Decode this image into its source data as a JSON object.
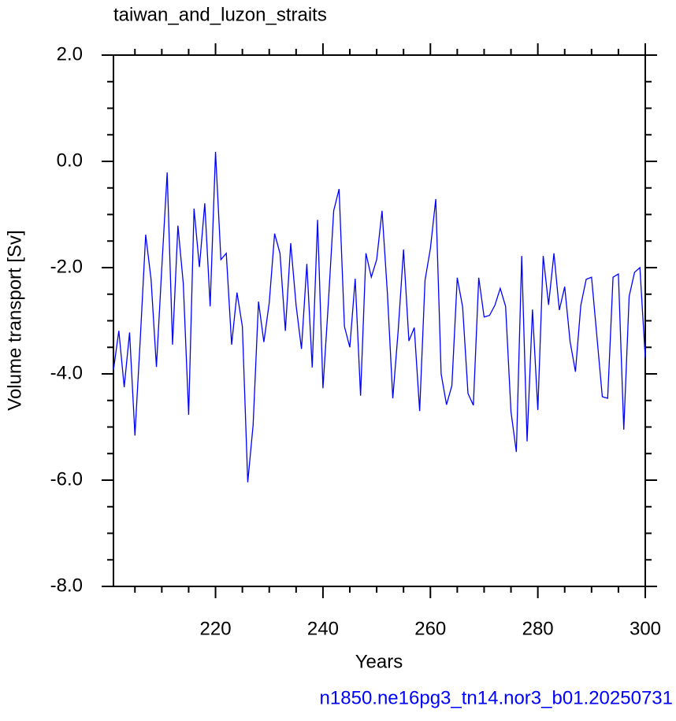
{
  "chart_data": {
    "type": "line",
    "title": "taiwan_and_luzon_straits",
    "subtitle": "n1850.ne16pg3_tn14.nor3_b01.20250731",
    "xlabel": "Years",
    "ylabel": "Volume transport [Sv]",
    "x": [
      201,
      202,
      203,
      204,
      205,
      206,
      207,
      208,
      209,
      210,
      211,
      212,
      213,
      214,
      215,
      216,
      217,
      218,
      219,
      220,
      221,
      222,
      223,
      224,
      225,
      226,
      227,
      228,
      229,
      230,
      231,
      232,
      233,
      234,
      235,
      236,
      237,
      238,
      239,
      240,
      241,
      242,
      243,
      244,
      245,
      246,
      247,
      248,
      249,
      250,
      251,
      252,
      253,
      254,
      255,
      256,
      257,
      258,
      259,
      260,
      261,
      262,
      263,
      264,
      265,
      266,
      267,
      268,
      269,
      270,
      271,
      272,
      273,
      274,
      275,
      276,
      277,
      278,
      279,
      280,
      281,
      282,
      283,
      284,
      285,
      286,
      287,
      288,
      289,
      290,
      291,
      292,
      293,
      294,
      295,
      296,
      297,
      298,
      299,
      300
    ],
    "series": [
      {
        "color": "#0000ff",
        "values": [
          -3.93,
          -3.19,
          -4.25,
          -3.22,
          -5.16,
          -3.33,
          -1.38,
          -2.22,
          -3.87,
          -2.0,
          -0.21,
          -3.45,
          -1.21,
          -2.3,
          -4.77,
          -0.89,
          -1.99,
          -0.79,
          -2.73,
          0.18,
          -1.85,
          -1.73,
          -3.45,
          -2.47,
          -3.11,
          -6.04,
          -4.96,
          -2.64,
          -3.4,
          -2.66,
          -1.36,
          -1.73,
          -3.19,
          -1.54,
          -2.71,
          -3.53,
          -1.93,
          -3.88,
          -1.1,
          -4.27,
          -2.67,
          -0.93,
          -0.52,
          -3.11,
          -3.5,
          -2.21,
          -4.41,
          -1.73,
          -2.18,
          -1.85,
          -0.93,
          -2.49,
          -4.46,
          -3.19,
          -1.66,
          -3.38,
          -3.13,
          -4.7,
          -2.24,
          -1.64,
          -0.71,
          -4.0,
          -4.58,
          -4.22,
          -2.19,
          -2.74,
          -4.37,
          -4.59,
          -2.19,
          -2.93,
          -2.9,
          -2.71,
          -2.39,
          -2.73,
          -4.71,
          -5.47,
          -1.78,
          -5.27,
          -2.79,
          -4.68,
          -1.78,
          -2.7,
          -1.73,
          -2.8,
          -2.36,
          -3.39,
          -3.96,
          -2.71,
          -2.22,
          -2.18,
          -3.3,
          -4.43,
          -4.46,
          -2.18,
          -2.12,
          -5.05,
          -2.54,
          -2.09,
          -2.0,
          -3.7
        ]
      }
    ],
    "xlim": [
      201,
      300
    ],
    "ylim": [
      -8,
      2
    ],
    "xticks": [
      220,
      240,
      260,
      280,
      300
    ],
    "xminorticks": [
      205,
      210,
      215,
      225,
      230,
      235,
      245,
      250,
      255,
      265,
      270,
      275,
      285,
      290,
      295
    ],
    "yticks": [
      {
        "value": -8,
        "label": "-8.0"
      },
      {
        "value": -6,
        "label": "-6.0"
      },
      {
        "value": -4,
        "label": "-4.0"
      },
      {
        "value": -2,
        "label": "-2.0"
      },
      {
        "value": 0,
        "label": "0.0"
      },
      {
        "value": 2,
        "label": "2.0"
      }
    ],
    "yminorticks": [
      -7.5,
      -7,
      -6.5,
      -5.5,
      -5,
      -4.5,
      -3.5,
      -3,
      -2.5,
      -1.5,
      -1,
      -0.5,
      0.5,
      1,
      1.5
    ]
  }
}
